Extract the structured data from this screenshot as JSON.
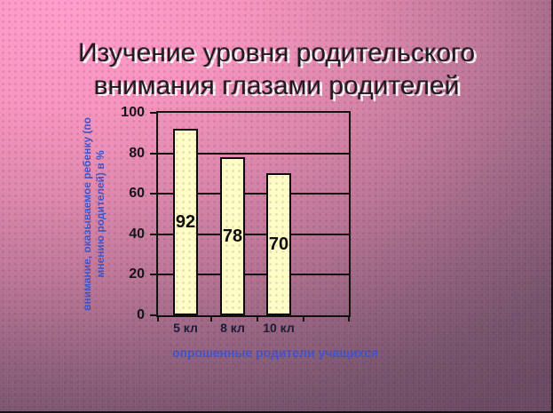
{
  "slide": {
    "title": {
      "line1": "Изучение уровня родительского",
      "line2": "внимания глазами родителей",
      "color": "#16161e",
      "shadow_color": "#ffffff"
    },
    "background": {
      "top_left": "#ff9ccf",
      "bottom_right": "#664762"
    }
  },
  "chart_data": {
    "type": "bar",
    "title": "",
    "categories": [
      "5 кл",
      "8 кл",
      "10 кл"
    ],
    "values": [
      92,
      78,
      70
    ],
    "bar_labels": [
      "92",
      "78",
      "70"
    ],
    "xlabel": "опрошенные родители учащихся",
    "ylabel": "внимание, оказываемое ребенку (по мнению родителей) в %",
    "ylabel_lines": [
      "внимание, оказываемое ребенку (по",
      "мнению родителей) в %"
    ],
    "ylim": [
      0,
      100
    ],
    "yticks": [
      0,
      20,
      40,
      60,
      80,
      100
    ],
    "grid": true,
    "legend_position": "none",
    "bar_fill": "#ffffc8",
    "bar_border": "#000000",
    "axis_color": "#0a0a0a",
    "tick_label_color": "#0c0c14",
    "category_label_color": "#141432",
    "axis_title_color": "#3b4fc8"
  }
}
